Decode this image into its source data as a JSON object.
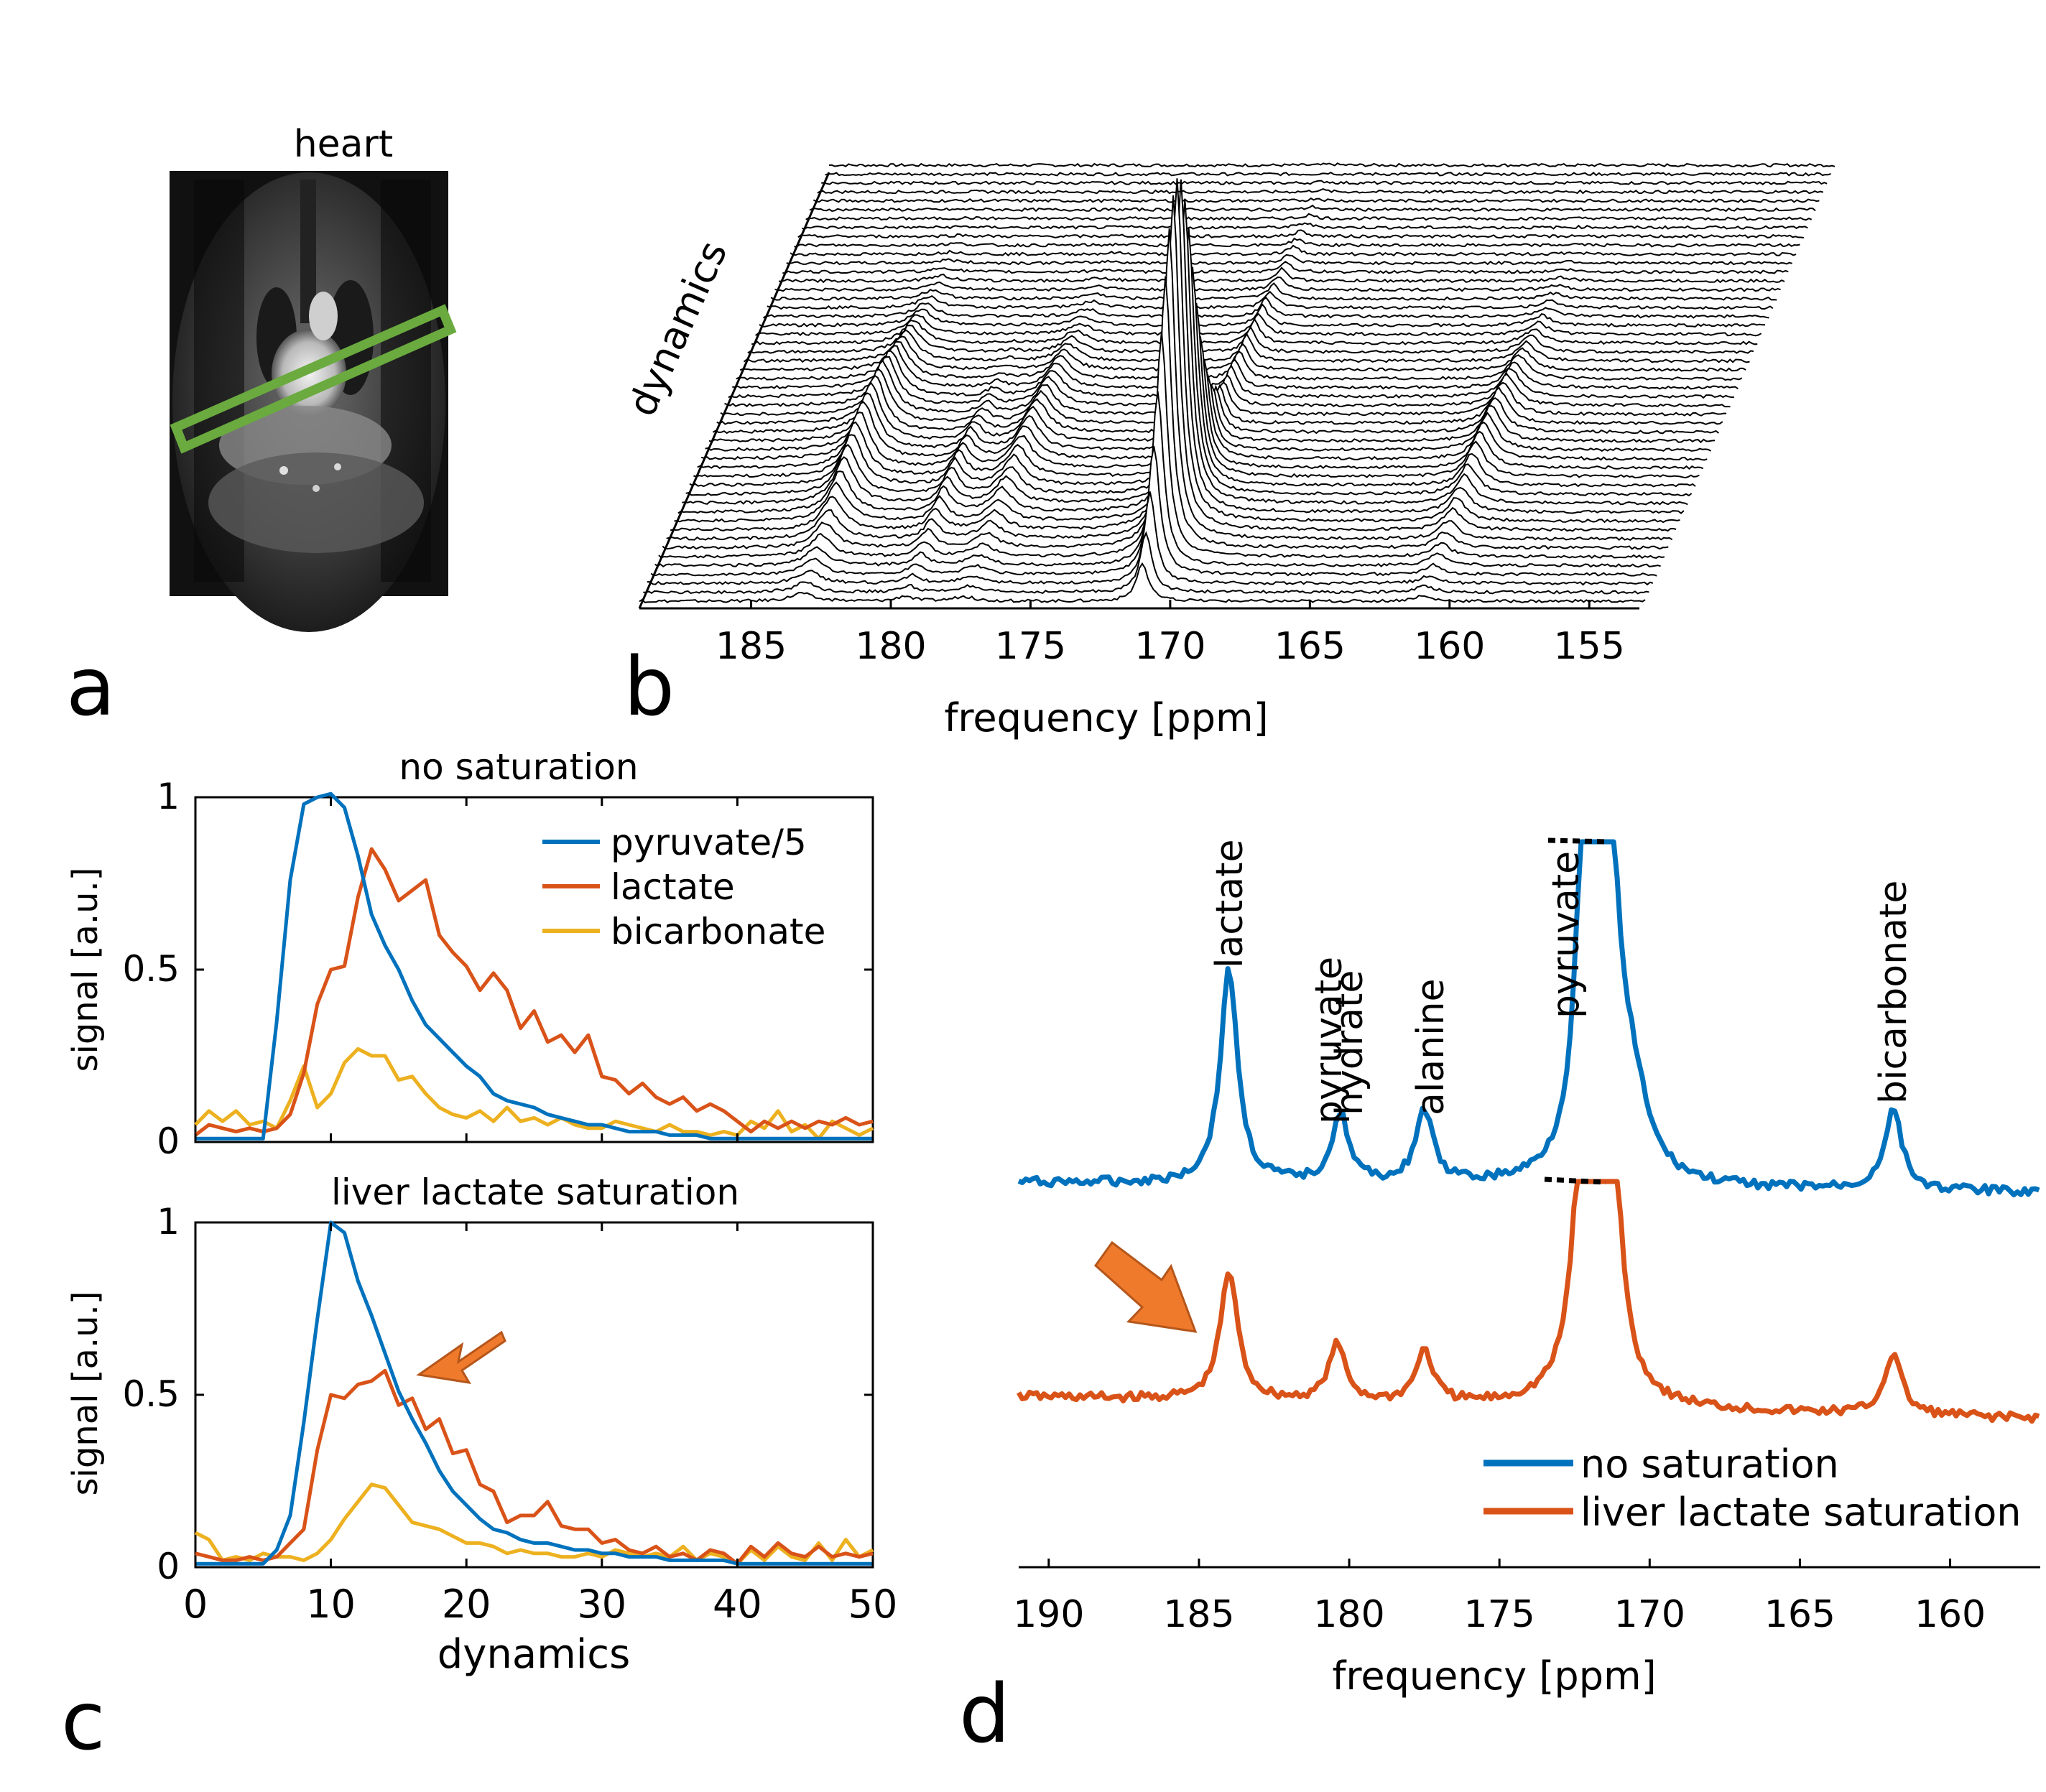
{
  "panel_labels": {
    "a": "a",
    "b": "b",
    "c": "c",
    "d": "d"
  },
  "panel_a": {
    "title": "heart",
    "roi_color": "#6aaa3f"
  },
  "colors": {
    "pyruvate": "#0072bd",
    "lactate": "#d95319",
    "bicarbonate": "#edb120",
    "arrow": "#f07a2c",
    "green": "#6aaa3f"
  },
  "chart_data": [
    {
      "id": "b",
      "type": "line",
      "subtype": "stacked-waterfall",
      "xlabel": "frequency [ppm]",
      "ylabel": "dynamics",
      "x_ticks": [
        185,
        180,
        175,
        170,
        165,
        160,
        155
      ],
      "xlim": [
        189,
        153
      ],
      "n_traces": 50,
      "peaks": [
        {
          "ppm": 171,
          "name": "pyruvate",
          "peak_height": 1.0
        },
        {
          "ppm": 183.2,
          "name": "lactate",
          "peak_height": 0.18
        },
        {
          "ppm": 179.5,
          "name": "pyruvate hydrate",
          "peak_height": 0.08
        },
        {
          "ppm": 177.4,
          "name": "alanine",
          "peak_height": 0.1
        },
        {
          "ppm": 161.0,
          "name": "bicarbonate",
          "peak_height": 0.12
        }
      ]
    },
    {
      "id": "c-top",
      "type": "line",
      "title": "no saturation",
      "xlabel": "",
      "ylabel": "signal [a.u.]",
      "xlim": [
        0,
        50
      ],
      "ylim": [
        0,
        1
      ],
      "y_ticks": [
        "0",
        "0.5",
        "1"
      ],
      "legend_position": "top-right",
      "series": [
        {
          "name": "pyruvate/5",
          "color": "#0072bd",
          "values": [
            0.01,
            0.01,
            0.01,
            0.01,
            0.01,
            0.01,
            0.35,
            0.76,
            0.98,
            1.0,
            1.01,
            0.97,
            0.83,
            0.66,
            0.57,
            0.5,
            0.41,
            0.34,
            0.3,
            0.26,
            0.22,
            0.19,
            0.14,
            0.12,
            0.11,
            0.1,
            0.08,
            0.07,
            0.06,
            0.05,
            0.05,
            0.04,
            0.03,
            0.03,
            0.03,
            0.02,
            0.02,
            0.02,
            0.01,
            0.01,
            0.01,
            0.01,
            0.01,
            0.01,
            0.01,
            0.01,
            0.01,
            0.01,
            0.01,
            0.01,
            0.01
          ]
        },
        {
          "name": "lactate",
          "color": "#d95319",
          "values": [
            0.02,
            0.05,
            0.04,
            0.03,
            0.04,
            0.03,
            0.04,
            0.08,
            0.2,
            0.4,
            0.5,
            0.51,
            0.71,
            0.85,
            0.79,
            0.7,
            0.73,
            0.76,
            0.6,
            0.55,
            0.51,
            0.44,
            0.49,
            0.44,
            0.33,
            0.38,
            0.29,
            0.31,
            0.26,
            0.31,
            0.19,
            0.18,
            0.14,
            0.17,
            0.13,
            0.11,
            0.13,
            0.09,
            0.11,
            0.09,
            0.06,
            0.03,
            0.06,
            0.04,
            0.06,
            0.04,
            0.06,
            0.05,
            0.07,
            0.05,
            0.06
          ]
        },
        {
          "name": "bicarbonate",
          "color": "#edb120",
          "values": [
            0.05,
            0.09,
            0.06,
            0.09,
            0.05,
            0.06,
            0.04,
            0.12,
            0.22,
            0.1,
            0.14,
            0.23,
            0.27,
            0.25,
            0.25,
            0.18,
            0.19,
            0.14,
            0.1,
            0.08,
            0.07,
            0.09,
            0.06,
            0.1,
            0.06,
            0.07,
            0.05,
            0.07,
            0.05,
            0.04,
            0.04,
            0.06,
            0.05,
            0.04,
            0.03,
            0.05,
            0.03,
            0.03,
            0.02,
            0.03,
            0.02,
            0.06,
            0.04,
            0.09,
            0.03,
            0.05,
            0.01,
            0.06,
            0.04,
            0.02,
            0.04
          ]
        }
      ]
    },
    {
      "id": "c-bottom",
      "type": "line",
      "title": "liver lactate saturation",
      "xlabel": "dynamics",
      "ylabel": "signal [a.u.]",
      "xlim": [
        0,
        50
      ],
      "ylim": [
        0,
        1
      ],
      "x_ticks": [
        0,
        10,
        20,
        30,
        40,
        50
      ],
      "y_ticks": [
        "0",
        "0.5",
        "1"
      ],
      "series": [
        {
          "name": "pyruvate/5",
          "color": "#0072bd",
          "values": [
            0.01,
            0.01,
            0.01,
            0.01,
            0.01,
            0.01,
            0.05,
            0.15,
            0.42,
            0.72,
            1.0,
            0.97,
            0.83,
            0.73,
            0.62,
            0.51,
            0.43,
            0.36,
            0.28,
            0.22,
            0.18,
            0.14,
            0.11,
            0.1,
            0.08,
            0.07,
            0.07,
            0.06,
            0.05,
            0.05,
            0.04,
            0.04,
            0.03,
            0.03,
            0.03,
            0.02,
            0.02,
            0.02,
            0.02,
            0.02,
            0.01,
            0.01,
            0.01,
            0.01,
            0.01,
            0.01,
            0.01,
            0.01,
            0.01,
            0.01,
            0.01
          ]
        },
        {
          "name": "lactate",
          "color": "#d95319",
          "values": [
            0.04,
            0.03,
            0.02,
            0.02,
            0.03,
            0.02,
            0.03,
            0.07,
            0.11,
            0.34,
            0.5,
            0.49,
            0.53,
            0.54,
            0.57,
            0.47,
            0.49,
            0.4,
            0.43,
            0.33,
            0.34,
            0.24,
            0.22,
            0.13,
            0.15,
            0.15,
            0.19,
            0.12,
            0.11,
            0.11,
            0.07,
            0.08,
            0.05,
            0.04,
            0.06,
            0.03,
            0.04,
            0.02,
            0.05,
            0.04,
            0.01,
            0.06,
            0.03,
            0.07,
            0.04,
            0.03,
            0.06,
            0.03,
            0.04,
            0.03,
            0.04
          ]
        },
        {
          "name": "bicarbonate",
          "color": "#edb120",
          "values": [
            0.1,
            0.08,
            0.02,
            0.03,
            0.02,
            0.04,
            0.03,
            0.03,
            0.02,
            0.04,
            0.08,
            0.14,
            0.19,
            0.24,
            0.23,
            0.18,
            0.13,
            0.12,
            0.11,
            0.09,
            0.07,
            0.07,
            0.06,
            0.04,
            0.05,
            0.04,
            0.04,
            0.03,
            0.03,
            0.04,
            0.03,
            0.05,
            0.04,
            0.03,
            0.04,
            0.03,
            0.06,
            0.02,
            0.04,
            0.03,
            0.01,
            0.05,
            0.02,
            0.06,
            0.03,
            0.02,
            0.07,
            0.02,
            0.08,
            0.03,
            0.05
          ]
        }
      ]
    },
    {
      "id": "d",
      "type": "line",
      "xlabel": "frequency [ppm]",
      "ylabel": "",
      "xlim": [
        191,
        157
      ],
      "x_ticks": [
        190,
        185,
        180,
        175,
        170,
        165,
        160
      ],
      "legend_position": "bottom-right",
      "peak_labels": [
        {
          "text": "lactate",
          "ppm": 184.0
        },
        {
          "text": "pyruvate",
          "ppm": 180.7
        },
        {
          "text": "hydrate",
          "ppm": 180.0
        },
        {
          "text": "alanine",
          "ppm": 177.3
        },
        {
          "text": "pyruvate",
          "ppm": 172.8
        },
        {
          "text": "bicarbonate",
          "ppm": 161.9
        }
      ],
      "series": [
        {
          "name": "no saturation",
          "color": "#0072bd",
          "peaks": [
            {
              "ppm": 184.0,
              "height": 0.53
            },
            {
              "ppm": 180.3,
              "height": 0.17
            },
            {
              "ppm": 177.5,
              "height": 0.18
            },
            {
              "ppm": 172.1,
              "height": 1.0,
              "truncated": true
            },
            {
              "ppm": 171.4,
              "height": 1.0,
              "truncated": true
            },
            {
              "ppm": 170.6,
              "height": 0.2
            },
            {
              "ppm": 161.9,
              "height": 0.2
            }
          ]
        },
        {
          "name": "liver lactate saturation",
          "color": "#d95319",
          "peaks": [
            {
              "ppm": 184.0,
              "height": 0.32
            },
            {
              "ppm": 180.4,
              "height": 0.14
            },
            {
              "ppm": 177.5,
              "height": 0.13
            },
            {
              "ppm": 172.1,
              "height": 1.0,
              "truncated": true
            },
            {
              "ppm": 171.4,
              "height": 1.0,
              "truncated": true
            },
            {
              "ppm": 161.9,
              "height": 0.15
            }
          ]
        }
      ]
    }
  ]
}
